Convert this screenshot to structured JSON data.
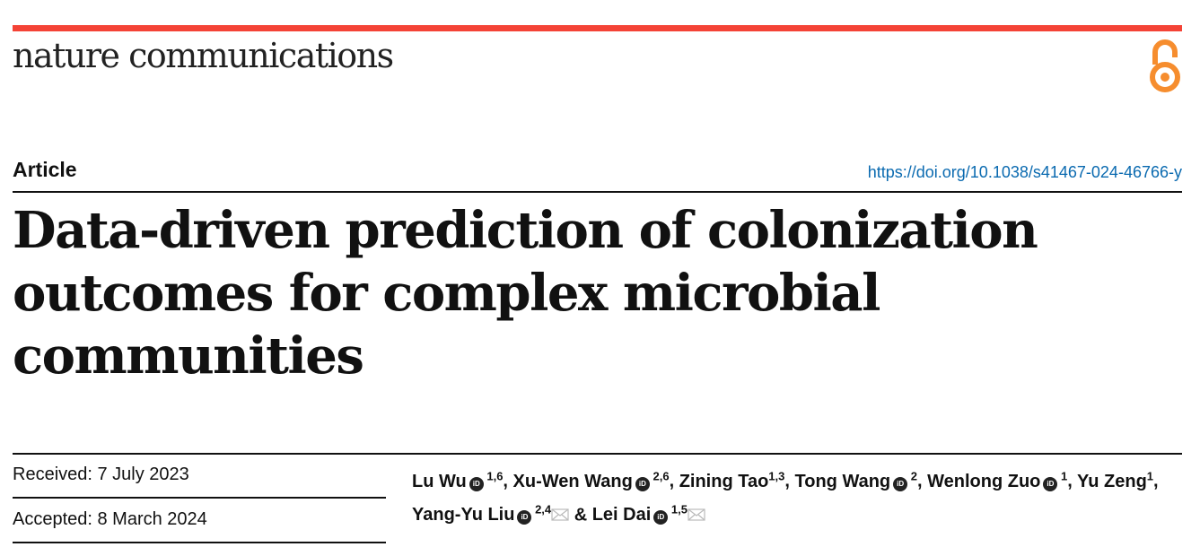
{
  "journal": {
    "name": "nature communications",
    "icon": "open-access-icon",
    "accent": "#f44336",
    "oa_color": "#f68d2e"
  },
  "article_type": "Article",
  "doi": "https://doi.org/10.1038/s41467-024-46766-y",
  "title": "Data-driven prediction of colonization outcomes for complex microbial communities",
  "received": "Received: 7 July 2023",
  "accepted": "Accepted: 8 March 2024",
  "authors": [
    {
      "name": "Lu Wu",
      "orcid": true,
      "aff": "1,6",
      "sep": ", "
    },
    {
      "name": "Xu-Wen Wang",
      "orcid": true,
      "aff": "2,6",
      "sep": ", "
    },
    {
      "name": "Zining Tao",
      "orcid": false,
      "aff": "1,3",
      "sep": ", "
    },
    {
      "name": "Tong Wang",
      "orcid": true,
      "aff": "2",
      "sep": ", "
    },
    {
      "name": "Wenlong Zuo",
      "orcid": true,
      "aff": "1",
      "sep": ", "
    },
    {
      "name": "Yu Zeng",
      "orcid": false,
      "aff": "1",
      "sep": ", "
    },
    {
      "name": "Yang-Yu Liu",
      "orcid": true,
      "aff": "2,4",
      "mail": true,
      "sep": " & "
    },
    {
      "name": "Lei Dai",
      "orcid": true,
      "aff": "1,5",
      "mail": true,
      "sep": ""
    }
  ]
}
